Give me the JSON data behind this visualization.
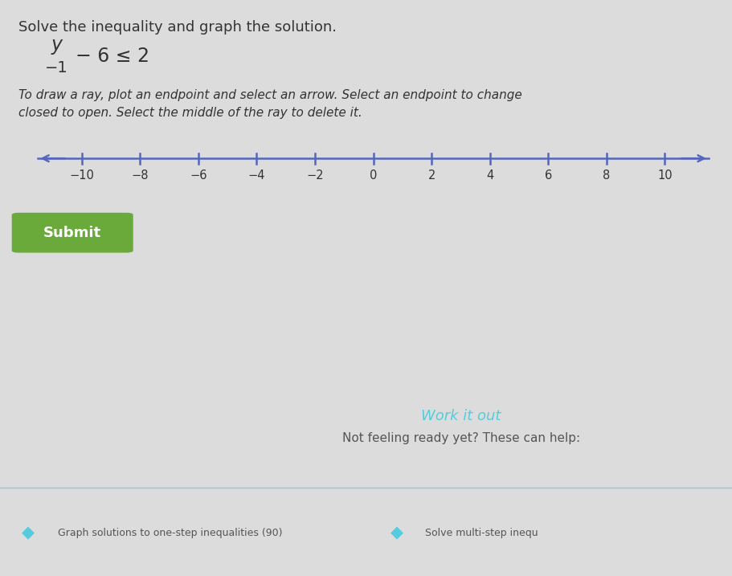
{
  "bg_color": "#dcdcdc",
  "title": "Solve the inequality and graph the solution.",
  "instruction_line1": "To draw a ray, plot an endpoint and select an arrow. Select an endpoint to change",
  "instruction_line2": "closed to open. Select the middle of the ray to delete it.",
  "tick_values": [
    -10,
    -8,
    -6,
    -4,
    -2,
    0,
    2,
    4,
    6,
    8,
    10
  ],
  "number_line_color": "#5566bb",
  "submit_text": "Submit",
  "submit_bg": "#6aaa3a",
  "submit_text_color": "#ffffff",
  "work_it_out": "Work it out",
  "help_text": "Not feeling ready yet? These can help:",
  "help_link1": "Graph solutions to one-step inequalities (90)",
  "help_link2": "Solve multi-step inequ",
  "help_color": "#55ccdd",
  "bottom_bg": "#aaddee",
  "card_bg": "#f0f8fa",
  "text_color": "#333333"
}
